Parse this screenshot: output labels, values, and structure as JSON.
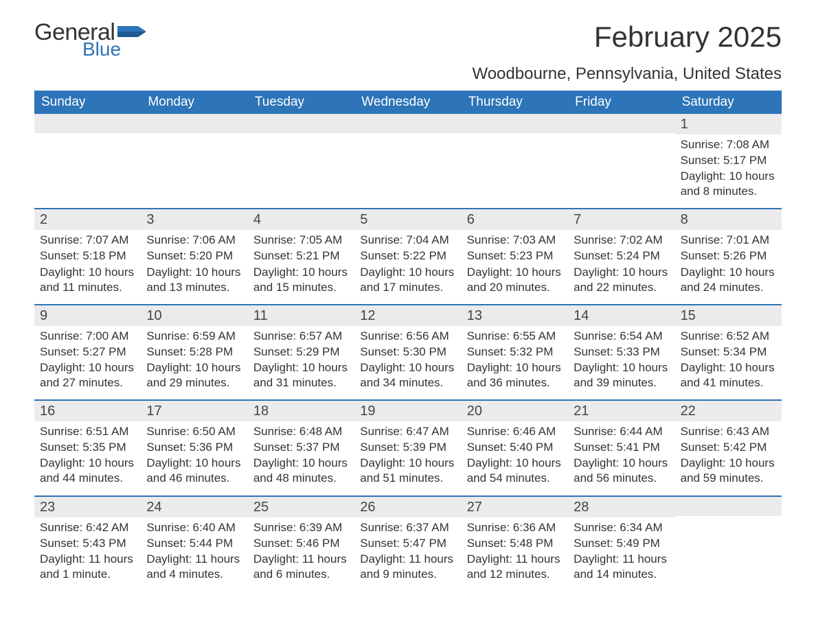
{
  "logo": {
    "word1": "General",
    "word2": "Blue",
    "word1_color": "#333333",
    "word2_color": "#2d74b8"
  },
  "title": "February 2025",
  "location": "Woodbourne, Pennsylvania, United States",
  "colors": {
    "header_bg": "#2d74b8",
    "header_text": "#ffffff",
    "daynum_bg": "#ebebeb",
    "border": "#2d74b8",
    "text": "#333333",
    "background": "#ffffff"
  },
  "weekdays": [
    "Sunday",
    "Monday",
    "Tuesday",
    "Wednesday",
    "Thursday",
    "Friday",
    "Saturday"
  ],
  "weeks": [
    [
      {
        "n": "",
        "lines": []
      },
      {
        "n": "",
        "lines": []
      },
      {
        "n": "",
        "lines": []
      },
      {
        "n": "",
        "lines": []
      },
      {
        "n": "",
        "lines": []
      },
      {
        "n": "",
        "lines": []
      },
      {
        "n": "1",
        "lines": [
          "Sunrise: 7:08 AM",
          "Sunset: 5:17 PM",
          "Daylight: 10 hours and 8 minutes."
        ]
      }
    ],
    [
      {
        "n": "2",
        "lines": [
          "Sunrise: 7:07 AM",
          "Sunset: 5:18 PM",
          "Daylight: 10 hours and 11 minutes."
        ]
      },
      {
        "n": "3",
        "lines": [
          "Sunrise: 7:06 AM",
          "Sunset: 5:20 PM",
          "Daylight: 10 hours and 13 minutes."
        ]
      },
      {
        "n": "4",
        "lines": [
          "Sunrise: 7:05 AM",
          "Sunset: 5:21 PM",
          "Daylight: 10 hours and 15 minutes."
        ]
      },
      {
        "n": "5",
        "lines": [
          "Sunrise: 7:04 AM",
          "Sunset: 5:22 PM",
          "Daylight: 10 hours and 17 minutes."
        ]
      },
      {
        "n": "6",
        "lines": [
          "Sunrise: 7:03 AM",
          "Sunset: 5:23 PM",
          "Daylight: 10 hours and 20 minutes."
        ]
      },
      {
        "n": "7",
        "lines": [
          "Sunrise: 7:02 AM",
          "Sunset: 5:24 PM",
          "Daylight: 10 hours and 22 minutes."
        ]
      },
      {
        "n": "8",
        "lines": [
          "Sunrise: 7:01 AM",
          "Sunset: 5:26 PM",
          "Daylight: 10 hours and 24 minutes."
        ]
      }
    ],
    [
      {
        "n": "9",
        "lines": [
          "Sunrise: 7:00 AM",
          "Sunset: 5:27 PM",
          "Daylight: 10 hours and 27 minutes."
        ]
      },
      {
        "n": "10",
        "lines": [
          "Sunrise: 6:59 AM",
          "Sunset: 5:28 PM",
          "Daylight: 10 hours and 29 minutes."
        ]
      },
      {
        "n": "11",
        "lines": [
          "Sunrise: 6:57 AM",
          "Sunset: 5:29 PM",
          "Daylight: 10 hours and 31 minutes."
        ]
      },
      {
        "n": "12",
        "lines": [
          "Sunrise: 6:56 AM",
          "Sunset: 5:30 PM",
          "Daylight: 10 hours and 34 minutes."
        ]
      },
      {
        "n": "13",
        "lines": [
          "Sunrise: 6:55 AM",
          "Sunset: 5:32 PM",
          "Daylight: 10 hours and 36 minutes."
        ]
      },
      {
        "n": "14",
        "lines": [
          "Sunrise: 6:54 AM",
          "Sunset: 5:33 PM",
          "Daylight: 10 hours and 39 minutes."
        ]
      },
      {
        "n": "15",
        "lines": [
          "Sunrise: 6:52 AM",
          "Sunset: 5:34 PM",
          "Daylight: 10 hours and 41 minutes."
        ]
      }
    ],
    [
      {
        "n": "16",
        "lines": [
          "Sunrise: 6:51 AM",
          "Sunset: 5:35 PM",
          "Daylight: 10 hours and 44 minutes."
        ]
      },
      {
        "n": "17",
        "lines": [
          "Sunrise: 6:50 AM",
          "Sunset: 5:36 PM",
          "Daylight: 10 hours and 46 minutes."
        ]
      },
      {
        "n": "18",
        "lines": [
          "Sunrise: 6:48 AM",
          "Sunset: 5:37 PM",
          "Daylight: 10 hours and 48 minutes."
        ]
      },
      {
        "n": "19",
        "lines": [
          "Sunrise: 6:47 AM",
          "Sunset: 5:39 PM",
          "Daylight: 10 hours and 51 minutes."
        ]
      },
      {
        "n": "20",
        "lines": [
          "Sunrise: 6:46 AM",
          "Sunset: 5:40 PM",
          "Daylight: 10 hours and 54 minutes."
        ]
      },
      {
        "n": "21",
        "lines": [
          "Sunrise: 6:44 AM",
          "Sunset: 5:41 PM",
          "Daylight: 10 hours and 56 minutes."
        ]
      },
      {
        "n": "22",
        "lines": [
          "Sunrise: 6:43 AM",
          "Sunset: 5:42 PM",
          "Daylight: 10 hours and 59 minutes."
        ]
      }
    ],
    [
      {
        "n": "23",
        "lines": [
          "Sunrise: 6:42 AM",
          "Sunset: 5:43 PM",
          "Daylight: 11 hours and 1 minute."
        ]
      },
      {
        "n": "24",
        "lines": [
          "Sunrise: 6:40 AM",
          "Sunset: 5:44 PM",
          "Daylight: 11 hours and 4 minutes."
        ]
      },
      {
        "n": "25",
        "lines": [
          "Sunrise: 6:39 AM",
          "Sunset: 5:46 PM",
          "Daylight: 11 hours and 6 minutes."
        ]
      },
      {
        "n": "26",
        "lines": [
          "Sunrise: 6:37 AM",
          "Sunset: 5:47 PM",
          "Daylight: 11 hours and 9 minutes."
        ]
      },
      {
        "n": "27",
        "lines": [
          "Sunrise: 6:36 AM",
          "Sunset: 5:48 PM",
          "Daylight: 11 hours and 12 minutes."
        ]
      },
      {
        "n": "28",
        "lines": [
          "Sunrise: 6:34 AM",
          "Sunset: 5:49 PM",
          "Daylight: 11 hours and 14 minutes."
        ]
      },
      {
        "n": "",
        "lines": []
      }
    ]
  ]
}
